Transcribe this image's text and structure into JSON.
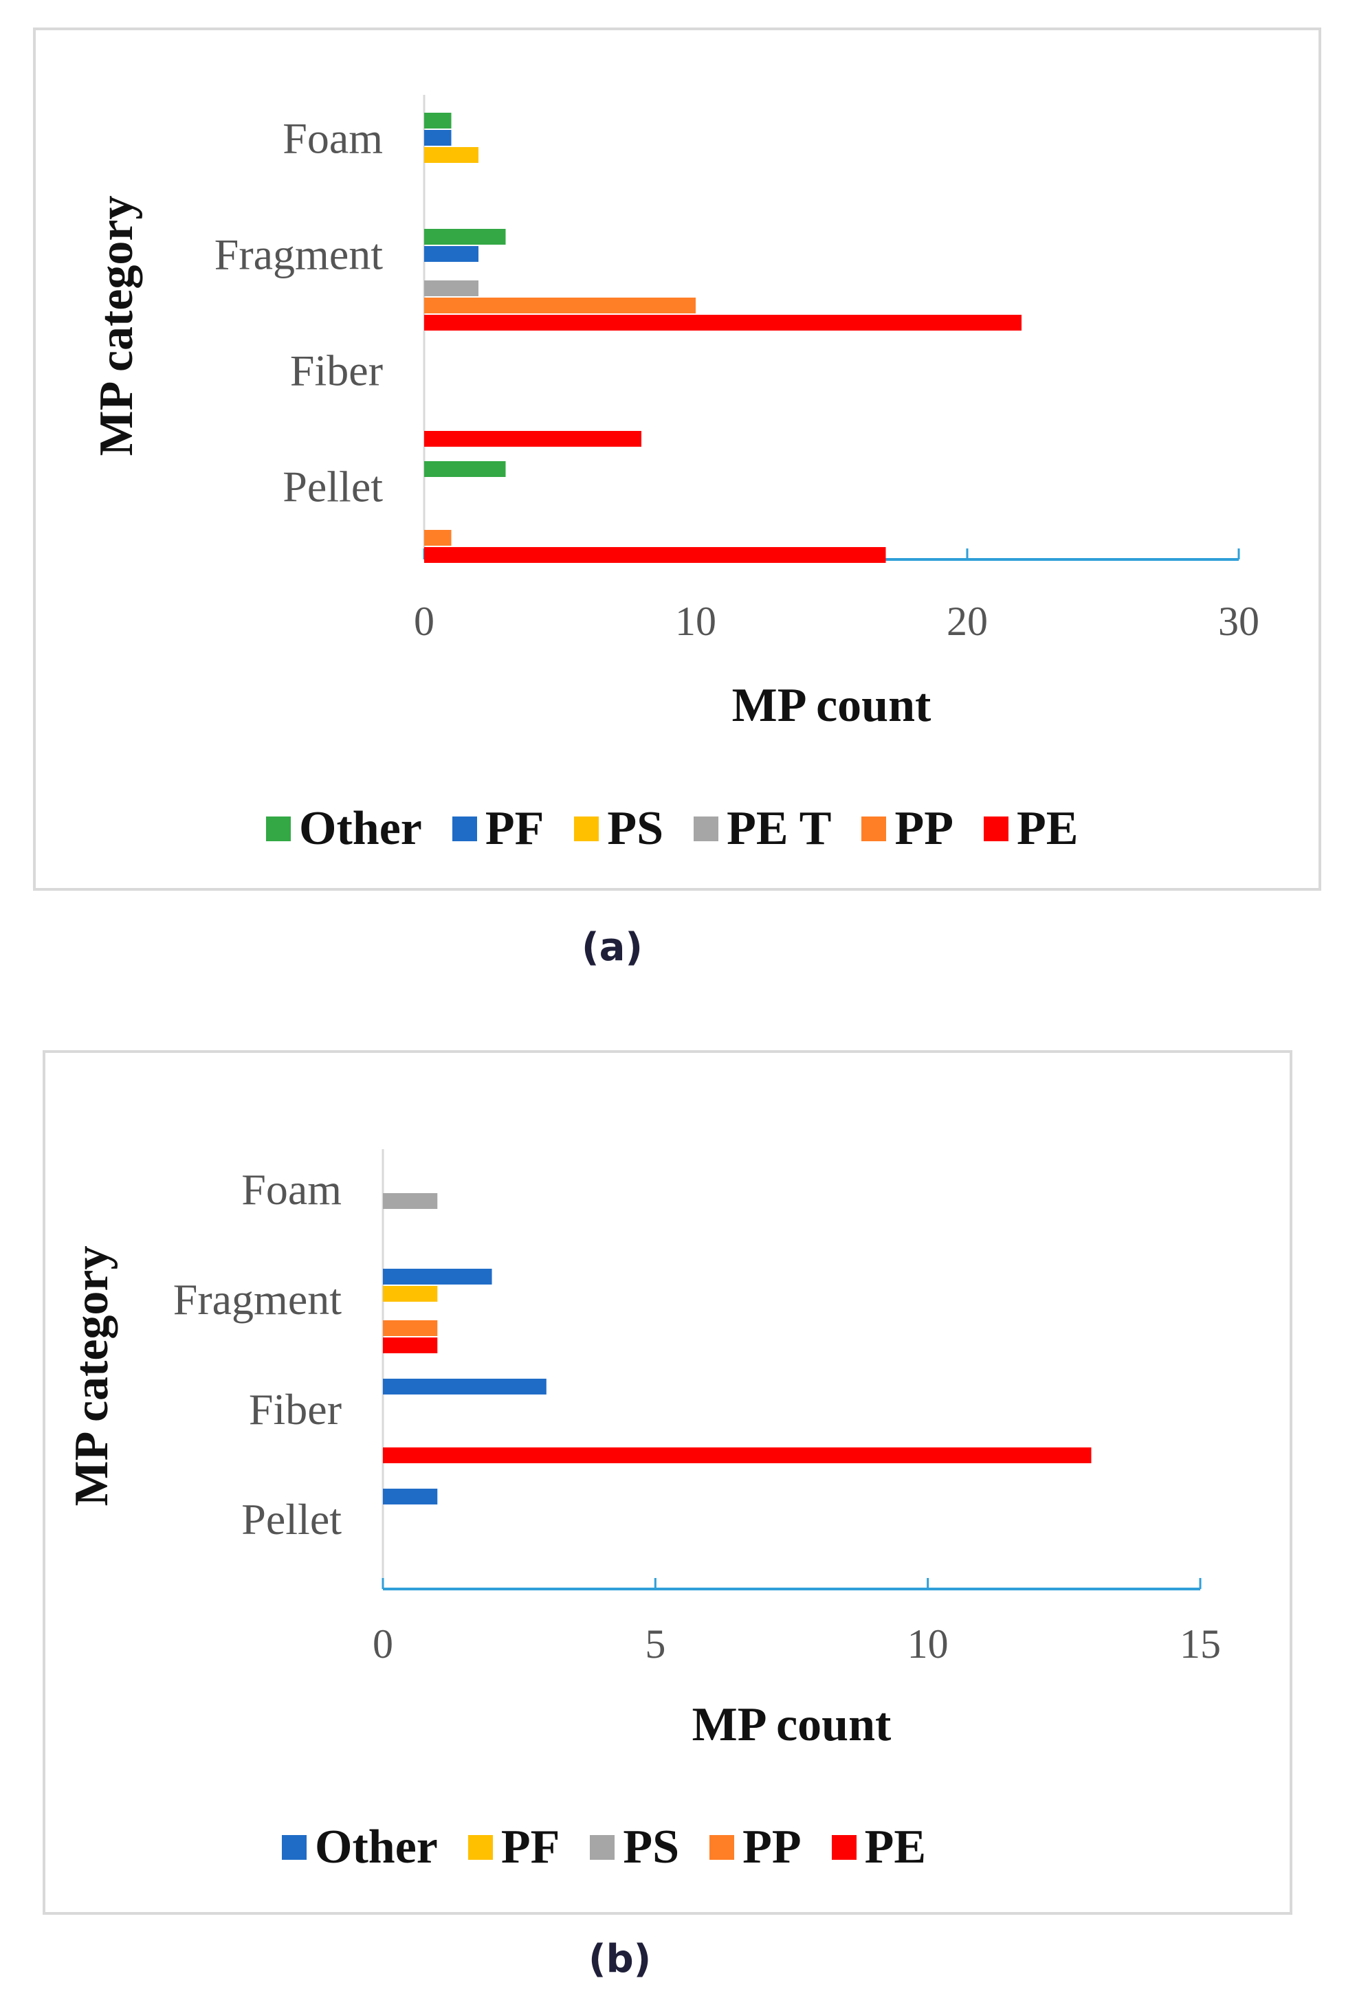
{
  "colors": {
    "Other_a": "#33a845",
    "PF_a": "#1f6cc7",
    "PS_a": "#ffc000",
    "PET": "#a6a6a6",
    "PP": "#ff7f27",
    "PE": "#ff0000",
    "Other_b": "#1f6cc7",
    "PF_b": "#ffc000",
    "PS_b": "#a6a6a6",
    "axis": "#2f9fd8"
  },
  "chart_data": [
    {
      "type": "bar",
      "orientation": "horizontal",
      "caption": "(a)",
      "xlabel": "MP count",
      "ylabel": "MP category",
      "categories": [
        "Foam",
        "Fragment",
        "Fiber",
        "Pellet"
      ],
      "xlim": [
        0,
        30
      ],
      "xticks": [
        "0",
        "10",
        "20",
        "30"
      ],
      "series": [
        {
          "name": "Other",
          "color": "#33a845",
          "values": [
            1,
            3,
            0,
            3
          ]
        },
        {
          "name": "PF",
          "color": "#1f6cc7",
          "values": [
            1,
            2,
            0,
            0
          ]
        },
        {
          "name": "PS",
          "color": "#ffc000",
          "values": [
            2,
            0,
            0,
            0
          ]
        },
        {
          "name": "PE T",
          "color": "#a6a6a6",
          "values": [
            0,
            2,
            0,
            0
          ]
        },
        {
          "name": "PP",
          "color": "#ff7f27",
          "values": [
            0,
            10,
            0,
            1
          ]
        },
        {
          "name": "PE",
          "color": "#ff0000",
          "values": [
            0,
            22,
            8,
            17
          ]
        }
      ],
      "legend_position": "bottom"
    },
    {
      "type": "bar",
      "orientation": "horizontal",
      "caption": "(b)",
      "xlabel": "MP count",
      "ylabel": "MP category",
      "categories": [
        "Foam",
        "Fragment",
        "Fiber",
        "Pellet"
      ],
      "xlim": [
        0,
        15
      ],
      "xticks": [
        "0",
        "5",
        "10",
        "15"
      ],
      "series": [
        {
          "name": "Other",
          "color": "#1f6cc7",
          "values": [
            0,
            2,
            3,
            1
          ]
        },
        {
          "name": "PF",
          "color": "#ffc000",
          "values": [
            0,
            1,
            0,
            0
          ]
        },
        {
          "name": "PS",
          "color": "#a6a6a6",
          "values": [
            1,
            0,
            0,
            0
          ]
        },
        {
          "name": "PP",
          "color": "#ff7f27",
          "values": [
            0,
            1,
            0,
            0
          ]
        },
        {
          "name": "PE",
          "color": "#ff0000",
          "values": [
            0,
            1,
            13,
            0
          ]
        }
      ],
      "legend_position": "bottom"
    }
  ]
}
